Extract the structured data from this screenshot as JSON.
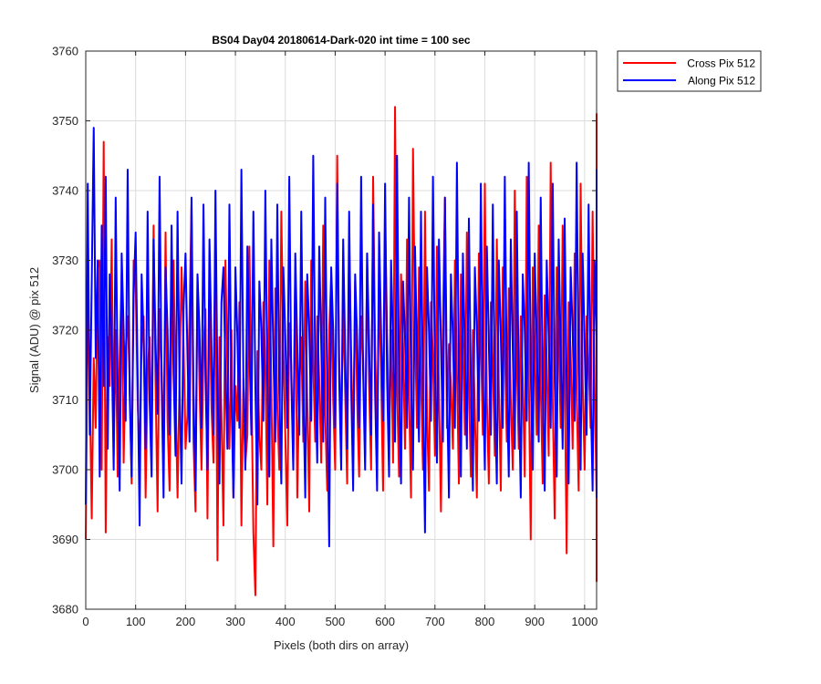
{
  "chart_data": {
    "type": "line",
    "title": "BS04 Day04 20180614-Dark-020 int time = 100 sec",
    "xlabel": "Pixels (both dirs on array)",
    "ylabel": "Signal (ADU) @ pix 512",
    "xlim": [
      0,
      1024
    ],
    "ylim": [
      3680,
      3760
    ],
    "xticks": [
      0,
      100,
      200,
      300,
      400,
      500,
      600,
      700,
      800,
      900,
      1000
    ],
    "yticks": [
      3680,
      3690,
      3700,
      3710,
      3720,
      3730,
      3740,
      3750,
      3760
    ],
    "grid": true,
    "legend_location": "outside top-right",
    "sample_every": 4,
    "series": [
      {
        "name": "Cross Pix 512",
        "color": "#ff0000",
        "values": [
          3690,
          3724,
          3712,
          3693,
          3716,
          3706,
          3729,
          3730,
          3700,
          3747,
          3691,
          3719,
          3712,
          3733,
          3702,
          3720,
          3699,
          3716,
          3728,
          3701,
          3717,
          3722,
          3713,
          3698,
          3730,
          3727,
          3710,
          3701,
          3718,
          3722,
          3696,
          3714,
          3719,
          3704,
          3735,
          3712,
          3694,
          3723,
          3715,
          3702,
          3734,
          3707,
          3697,
          3720,
          3730,
          3711,
          3696,
          3713,
          3729,
          3718,
          3703,
          3708,
          3722,
          3738,
          3704,
          3694,
          3728,
          3712,
          3700,
          3717,
          3723,
          3693,
          3726,
          3709,
          3701,
          3735,
          3687,
          3719,
          3708,
          3692,
          3730,
          3714,
          3703,
          3720,
          3696,
          3712,
          3707,
          3724,
          3692,
          3713,
          3701,
          3705,
          3732,
          3713,
          3691,
          3682,
          3717,
          3705,
          3700,
          3724,
          3715,
          3695,
          3730,
          3712,
          3689,
          3726,
          3709,
          3700,
          3737,
          3718,
          3705,
          3692,
          3721,
          3715,
          3701,
          3729,
          3696,
          3712,
          3719,
          3704,
          3727,
          3710,
          3694,
          3730,
          3715,
          3704,
          3722,
          3713,
          3701,
          3735,
          3708,
          3697,
          3720,
          3728,
          3710,
          3700,
          3745,
          3716,
          3705,
          3724,
          3711,
          3698,
          3733,
          3717,
          3703,
          3727,
          3710,
          3699,
          3722,
          3716,
          3702,
          3731,
          3712,
          3700,
          3742,
          3718,
          3705,
          3726,
          3714,
          3697,
          3736,
          3720,
          3704,
          3720,
          3701,
          3752,
          3712,
          3699,
          3728,
          3718,
          3703,
          3733,
          3711,
          3696,
          3746,
          3720,
          3706,
          3729,
          3713,
          3700,
          3737,
          3708,
          3697,
          3724,
          3716,
          3702,
          3732,
          3711,
          3694,
          3721,
          3739,
          3706,
          3718,
          3712,
          3703,
          3730,
          3714,
          3698,
          3728,
          3718,
          3705,
          3734,
          3712,
          3699,
          3720,
          3708,
          3696,
          3731,
          3719,
          3705,
          3741,
          3710,
          3698,
          3724,
          3715,
          3702,
          3733,
          3712,
          3697,
          3729,
          3718,
          3704,
          3726,
          3710,
          3700,
          3740,
          3716,
          3703,
          3722,
          3713,
          3699,
          3742,
          3714,
          3690,
          3729,
          3718,
          3705,
          3735,
          3712,
          3698,
          3725,
          3716,
          3702,
          3744,
          3710,
          3693,
          3729,
          3720,
          3706,
          3735,
          3714,
          3688,
          3724,
          3717,
          3703,
          3731,
          3711,
          3697,
          3741,
          3713,
          3700,
          3722,
          3715,
          3706,
          3737,
          3712,
          3696,
          3728,
          3718,
          3704,
          3734,
          3711,
          3693,
          3738,
          3715,
          3702,
          3721,
          3713,
          3700,
          3751,
          3716,
          3690,
          3728,
          3719,
          3706,
          3733,
          3712,
          3697,
          3724,
          3710,
          3703,
          3739,
          3714,
          3692,
          3730,
          3717,
          3701,
          3726,
          3712,
          3688,
          3735,
          3716,
          3704,
          3721,
          3712,
          3699,
          3737,
          3709,
          3687,
          3728,
          3719,
          3706,
          3733,
          3712,
          3697,
          3724,
          3716,
          3703,
          3736,
          3714,
          3684,
          3725,
          3718,
          3704,
          3731,
          3713,
          3698,
          3725,
          3712,
          3689,
          3717,
          3690
        ]
      },
      {
        "name": "Along Pix 512",
        "color": "#0000ff",
        "values": [
          3695,
          3741,
          3705,
          3727,
          3749,
          3716,
          3730,
          3699,
          3735,
          3712,
          3742,
          3703,
          3728,
          3718,
          3700,
          3739,
          3712,
          3697,
          3731,
          3720,
          3707,
          3743,
          3711,
          3699,
          3725,
          3734,
          3714,
          3692,
          3728,
          3719,
          3703,
          3737,
          3710,
          3699,
          3733,
          3718,
          3708,
          3742,
          3713,
          3696,
          3729,
          3720,
          3705,
          3735,
          3714,
          3702,
          3737,
          3712,
          3698,
          3723,
          3731,
          3716,
          3704,
          3739,
          3711,
          3697,
          3728,
          3720,
          3706,
          3738,
          3713,
          3700,
          3733,
          3718,
          3705,
          3740,
          3712,
          3698,
          3724,
          3729,
          3714,
          3703,
          3738,
          3711,
          3696,
          3729,
          3719,
          3706,
          3743,
          3713,
          3700,
          3732,
          3718,
          3705,
          3737,
          3712,
          3695,
          3727,
          3720,
          3707,
          3740,
          3713,
          3699,
          3733,
          3717,
          3704,
          3738,
          3711,
          3698,
          3729,
          3719,
          3706,
          3742,
          3713,
          3700,
          3731,
          3718,
          3705,
          3737,
          3712,
          3696,
          3728,
          3720,
          3707,
          3745,
          3714,
          3701,
          3732,
          3718,
          3704,
          3739,
          3711,
          3689,
          3729,
          3720,
          3706,
          3741,
          3713,
          3700,
          3733,
          3717,
          3703,
          3737,
          3712,
          3697,
          3728,
          3719,
          3706,
          3742,
          3714,
          3700,
          3731,
          3718,
          3705,
          3738,
          3711,
          3697,
          3734,
          3720,
          3707,
          3741,
          3713,
          3699,
          3730,
          3718,
          3704,
          3745,
          3712,
          3698,
          3727,
          3719,
          3706,
          3739,
          3713,
          3700,
          3732,
          3717,
          3704,
          3737,
          3711,
          3691,
          3729,
          3720,
          3707,
          3742,
          3714,
          3701,
          3733,
          3718,
          3704,
          3739,
          3712,
          3696,
          3728,
          3719,
          3706,
          3744,
          3713,
          3699,
          3731,
          3717,
          3703,
          3736,
          3712,
          3697,
          3729,
          3720,
          3707,
          3741,
          3714,
          3700,
          3732,
          3718,
          3705,
          3738,
          3711,
          3698,
          3730,
          3719,
          3706,
          3742,
          3713,
          3699,
          3733,
          3717,
          3703,
          3737,
          3712,
          3696,
          3728,
          3720,
          3707,
          3744,
          3714,
          3700,
          3731,
          3718,
          3704,
          3739,
          3711,
          3697,
          3730,
          3719,
          3706,
          3741,
          3713,
          3699,
          3733,
          3717,
          3703,
          3736,
          3712,
          3698,
          3729,
          3720,
          3707,
          3744,
          3714,
          3700,
          3731,
          3718,
          3705,
          3738,
          3712,
          3697,
          3730,
          3719,
          3706,
          3742,
          3713,
          3699,
          3732,
          3717,
          3703,
          3737,
          3711,
          3698,
          3729,
          3720,
          3707,
          3743,
          3714,
          3701,
          3733,
          3718,
          3704,
          3739,
          3712,
          3696,
          3728,
          3719,
          3706,
          3740,
          3713,
          3699,
          3731,
          3717,
          3704,
          3736,
          3712,
          3697,
          3730,
          3720,
          3707,
          3742,
          3714,
          3700,
          3732,
          3718,
          3705,
          3738,
          3711,
          3697,
          3729,
          3719,
          3706,
          3741,
          3713,
          3698,
          3733,
          3717,
          3703,
          3735,
          3712,
          3706,
          3731,
          3724,
          3729,
          3735,
          3725,
          3711,
          3723,
          3735
        ]
      }
    ]
  }
}
